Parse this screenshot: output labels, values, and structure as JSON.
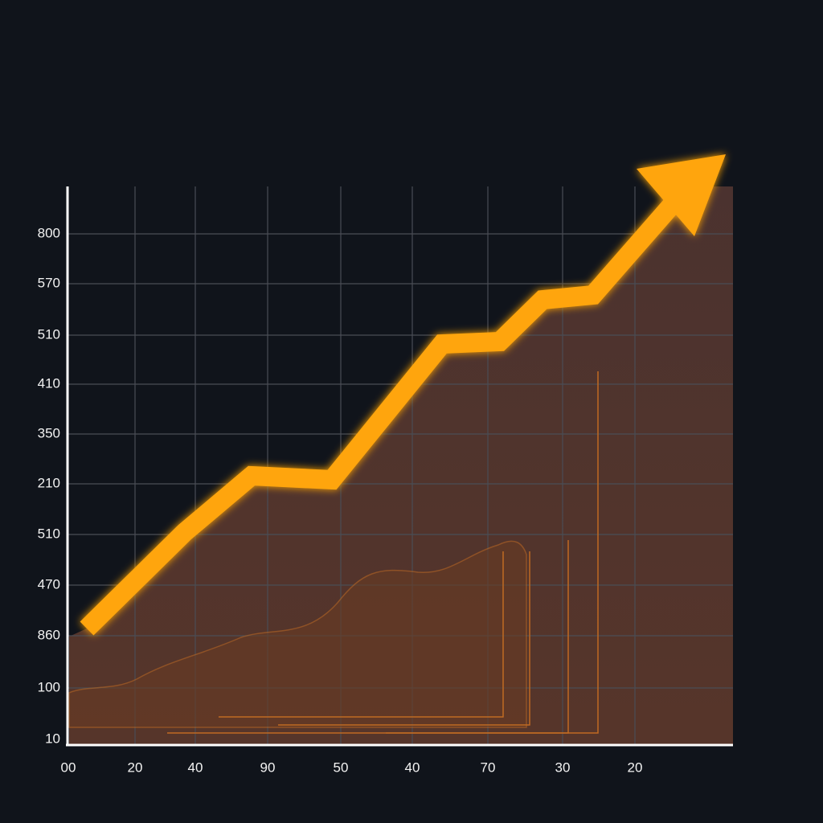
{
  "chart_data": {
    "type": "line",
    "categories": [
      "00",
      "20",
      "40",
      "90",
      "50",
      "40",
      "70",
      "30",
      "20"
    ],
    "y_labels": [
      "800",
      "570",
      "510",
      "410",
      "350",
      "210",
      "510",
      "470",
      "860",
      "100",
      "10"
    ],
    "grid": true,
    "color": "#ffa510"
  }
}
